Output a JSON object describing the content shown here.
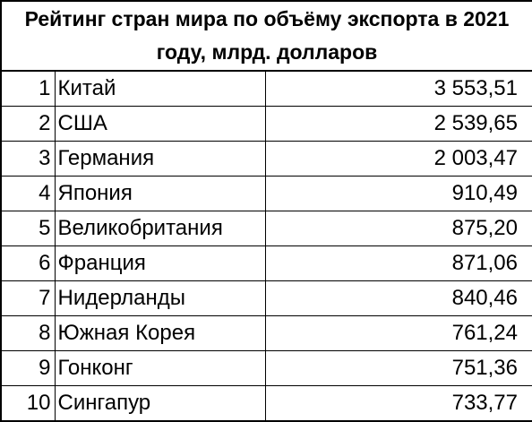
{
  "chart_data": {
    "type": "table",
    "title": "Рейтинг стран мира по объёму экспорта в 2021 году, млрд. долларов",
    "columns": [
      "rank",
      "country",
      "value"
    ],
    "rows": [
      {
        "rank": "1",
        "country": "Китай",
        "value": "3 553,51"
      },
      {
        "rank": "2",
        "country": "США",
        "value": "2 539,65"
      },
      {
        "rank": "3",
        "country": "Германия",
        "value": "2 003,47"
      },
      {
        "rank": "4",
        "country": "Япония",
        "value": "910,49"
      },
      {
        "rank": "5",
        "country": "Великобритания",
        "value": "875,20"
      },
      {
        "rank": "6",
        "country": "Франция",
        "value": "871,06"
      },
      {
        "rank": "7",
        "country": "Нидерланды",
        "value": "840,46"
      },
      {
        "rank": "8",
        "country": "Южная Корея",
        "value": "761,24"
      },
      {
        "rank": "9",
        "country": "Гонконг",
        "value": "751,36"
      },
      {
        "rank": "10",
        "country": "Сингапур",
        "value": "733,77"
      }
    ]
  }
}
